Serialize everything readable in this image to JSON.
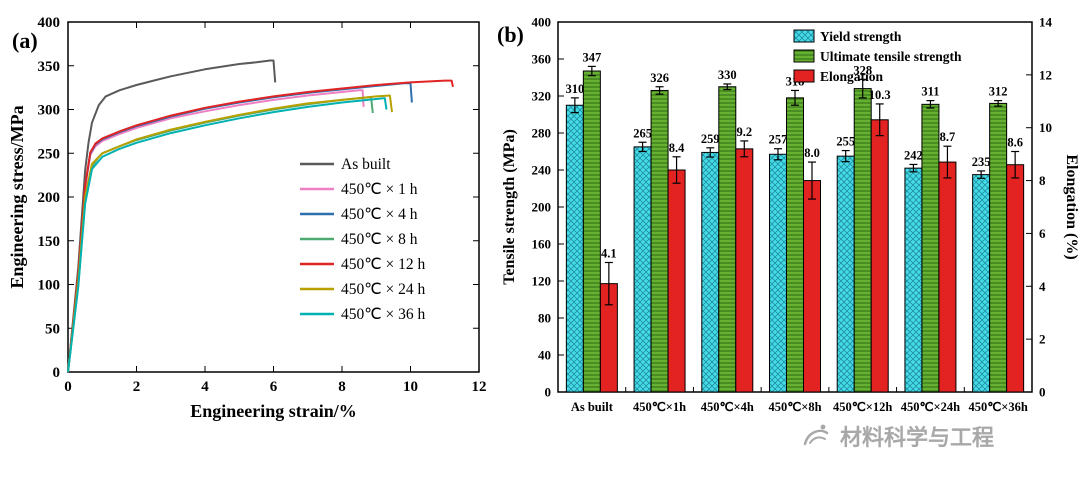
{
  "watermark": {
    "text": "材料科学与工程"
  },
  "chart_data": [
    {
      "type": "line",
      "panel_label": "(a)",
      "xlabel": "Engineering strain/%",
      "ylabel": "Engineering stress/MPa",
      "xlim": [
        0,
        12
      ],
      "ylim": [
        0,
        400
      ],
      "xticks": [
        0,
        2,
        4,
        6,
        8,
        10,
        12
      ],
      "yticks": [
        0,
        50,
        100,
        150,
        200,
        250,
        300,
        350,
        400
      ],
      "legend_position": "middle-right",
      "series": [
        {
          "name": "As built",
          "color": "#5a5a5a",
          "points": [
            [
              0,
              0
            ],
            [
              0.3,
              120
            ],
            [
              0.5,
              230
            ],
            [
              0.6,
              262
            ],
            [
              0.7,
              285
            ],
            [
              0.9,
              305
            ],
            [
              1.1,
              315
            ],
            [
              1.5,
              322
            ],
            [
              2,
              328
            ],
            [
              2.5,
              333
            ],
            [
              3,
              338
            ],
            [
              3.5,
              342
            ],
            [
              4,
              346
            ],
            [
              4.5,
              349
            ],
            [
              5,
              352
            ],
            [
              5.5,
              354
            ],
            [
              5.9,
              356
            ],
            [
              6.0,
              356
            ],
            [
              6.05,
              331
            ]
          ]
        },
        {
          "name": "450℃ × 1 h",
          "color": "#ef7fc3",
          "points": [
            [
              0,
              0
            ],
            [
              0.3,
              110
            ],
            [
              0.5,
              210
            ],
            [
              0.65,
              248
            ],
            [
              0.8,
              258
            ],
            [
              1,
              264
            ],
            [
              1.5,
              272
            ],
            [
              2,
              279
            ],
            [
              3,
              290
            ],
            [
              4,
              298
            ],
            [
              5,
              305
            ],
            [
              6,
              311
            ],
            [
              7,
              316
            ],
            [
              8,
              320
            ],
            [
              8.5,
              322
            ],
            [
              8.6,
              322
            ],
            [
              8.63,
              303
            ]
          ]
        },
        {
          "name": "450℃ × 4 h",
          "color": "#2e6fae",
          "points": [
            [
              0,
              0
            ],
            [
              0.3,
              112
            ],
            [
              0.5,
              212
            ],
            [
              0.65,
              250
            ],
            [
              0.8,
              260
            ],
            [
              1,
              266
            ],
            [
              1.5,
              274
            ],
            [
              2,
              281
            ],
            [
              3,
              292
            ],
            [
              4,
              301
            ],
            [
              5,
              308
            ],
            [
              6,
              314
            ],
            [
              7,
              319
            ],
            [
              8,
              323
            ],
            [
              9,
              327
            ],
            [
              9.8,
              330
            ],
            [
              10,
              330
            ],
            [
              10.04,
              308
            ]
          ]
        },
        {
          "name": "450℃ × 8 h",
          "color": "#4faa72",
          "points": [
            [
              0,
              0
            ],
            [
              0.3,
              100
            ],
            [
              0.5,
              195
            ],
            [
              0.7,
              235
            ],
            [
              0.9,
              246
            ],
            [
              1,
              250
            ],
            [
              1.5,
              258
            ],
            [
              2,
              265
            ],
            [
              3,
              276
            ],
            [
              4,
              285
            ],
            [
              5,
              293
            ],
            [
              6,
              300
            ],
            [
              7,
              306
            ],
            [
              8,
              311
            ],
            [
              8.8,
              314
            ],
            [
              8.85,
              314
            ],
            [
              8.9,
              296
            ]
          ]
        },
        {
          "name": "450℃ × 12 h",
          "color": "#e02424",
          "points": [
            [
              0,
              0
            ],
            [
              0.3,
              112
            ],
            [
              0.5,
              213
            ],
            [
              0.65,
              251
            ],
            [
              0.8,
              261
            ],
            [
              1,
              267
            ],
            [
              1.5,
              275
            ],
            [
              2,
              282
            ],
            [
              3,
              293
            ],
            [
              4,
              302
            ],
            [
              5,
              309
            ],
            [
              6,
              315
            ],
            [
              7,
              320
            ],
            [
              8,
              324
            ],
            [
              9,
              328
            ],
            [
              10,
              331
            ],
            [
              11,
              333
            ],
            [
              11.2,
              333
            ],
            [
              11.24,
              326
            ]
          ]
        },
        {
          "name": "450℃ × 24 h",
          "color": "#b8a000",
          "points": [
            [
              0,
              0
            ],
            [
              0.3,
              105
            ],
            [
              0.5,
              200
            ],
            [
              0.7,
              238
            ],
            [
              1,
              250
            ],
            [
              1.5,
              258
            ],
            [
              2,
              266
            ],
            [
              3,
              277
            ],
            [
              4,
              286
            ],
            [
              5,
              294
            ],
            [
              6,
              301
            ],
            [
              7,
              307
            ],
            [
              8,
              311
            ],
            [
              9,
              315
            ],
            [
              9.4,
              316
            ],
            [
              9.46,
              297
            ]
          ]
        },
        {
          "name": "450℃ × 36 h",
          "color": "#00b1b1",
          "points": [
            [
              0,
              0
            ],
            [
              0.3,
              98
            ],
            [
              0.5,
              192
            ],
            [
              0.7,
              232
            ],
            [
              1,
              246
            ],
            [
              1.5,
              255
            ],
            [
              2,
              262
            ],
            [
              3,
              273
            ],
            [
              4,
              282
            ],
            [
              5,
              290
            ],
            [
              6,
              297
            ],
            [
              7,
              303
            ],
            [
              8,
              308
            ],
            [
              9,
              312
            ],
            [
              9.25,
              313
            ],
            [
              9.3,
              300
            ]
          ]
        }
      ]
    },
    {
      "type": "bar",
      "panel_label": "(b)",
      "ylabel_left": "Tensile strength (MPa)",
      "ylabel_right": "Elongation (%)",
      "ylim_left": [
        0,
        400
      ],
      "ylim_right": [
        0,
        14
      ],
      "yticks_left": [
        0,
        40,
        80,
        120,
        160,
        200,
        240,
        280,
        320,
        360,
        400
      ],
      "yticks_right": [
        0,
        2,
        4,
        6,
        8,
        10,
        12,
        14
      ],
      "categories": [
        "As built",
        "450℃×1h",
        "450℃×4h",
        "450℃×8h",
        "450℃×12h",
        "450℃×24h",
        "450℃×36h"
      ],
      "legend_position": "top",
      "series": [
        {
          "name": "Yield strength",
          "axis": "left",
          "color": "#46dbe8",
          "pattern": "diagonal-crosshatch",
          "values": [
            310,
            265,
            259,
            257,
            255,
            242,
            235
          ],
          "errors": [
            8,
            5,
            5,
            6,
            6,
            4,
            4
          ],
          "labels": [
            "310",
            "265",
            "259",
            "257",
            "255",
            "242",
            "235"
          ]
        },
        {
          "name": "Ultimate tensile strength",
          "axis": "left",
          "color": "#66b032",
          "pattern": "horizontal-lines",
          "values": [
            347,
            326,
            330,
            318,
            328,
            311,
            312
          ],
          "errors": [
            5,
            4,
            3,
            8,
            10,
            4,
            3
          ],
          "labels": [
            "347",
            "326",
            "330",
            "318",
            "328",
            "311",
            "312"
          ]
        },
        {
          "name": "Elongation",
          "axis": "right",
          "color": "#e32222",
          "pattern": "solid",
          "values": [
            4.1,
            8.4,
            9.2,
            8.0,
            10.3,
            8.7,
            8.6
          ],
          "errors": [
            0.8,
            0.5,
            0.3,
            0.7,
            0.6,
            0.6,
            0.5
          ],
          "labels": [
            "4.1",
            "8.4",
            "9.2",
            "8.0",
            "10.3",
            "8.7",
            "8.6"
          ]
        }
      ]
    }
  ]
}
